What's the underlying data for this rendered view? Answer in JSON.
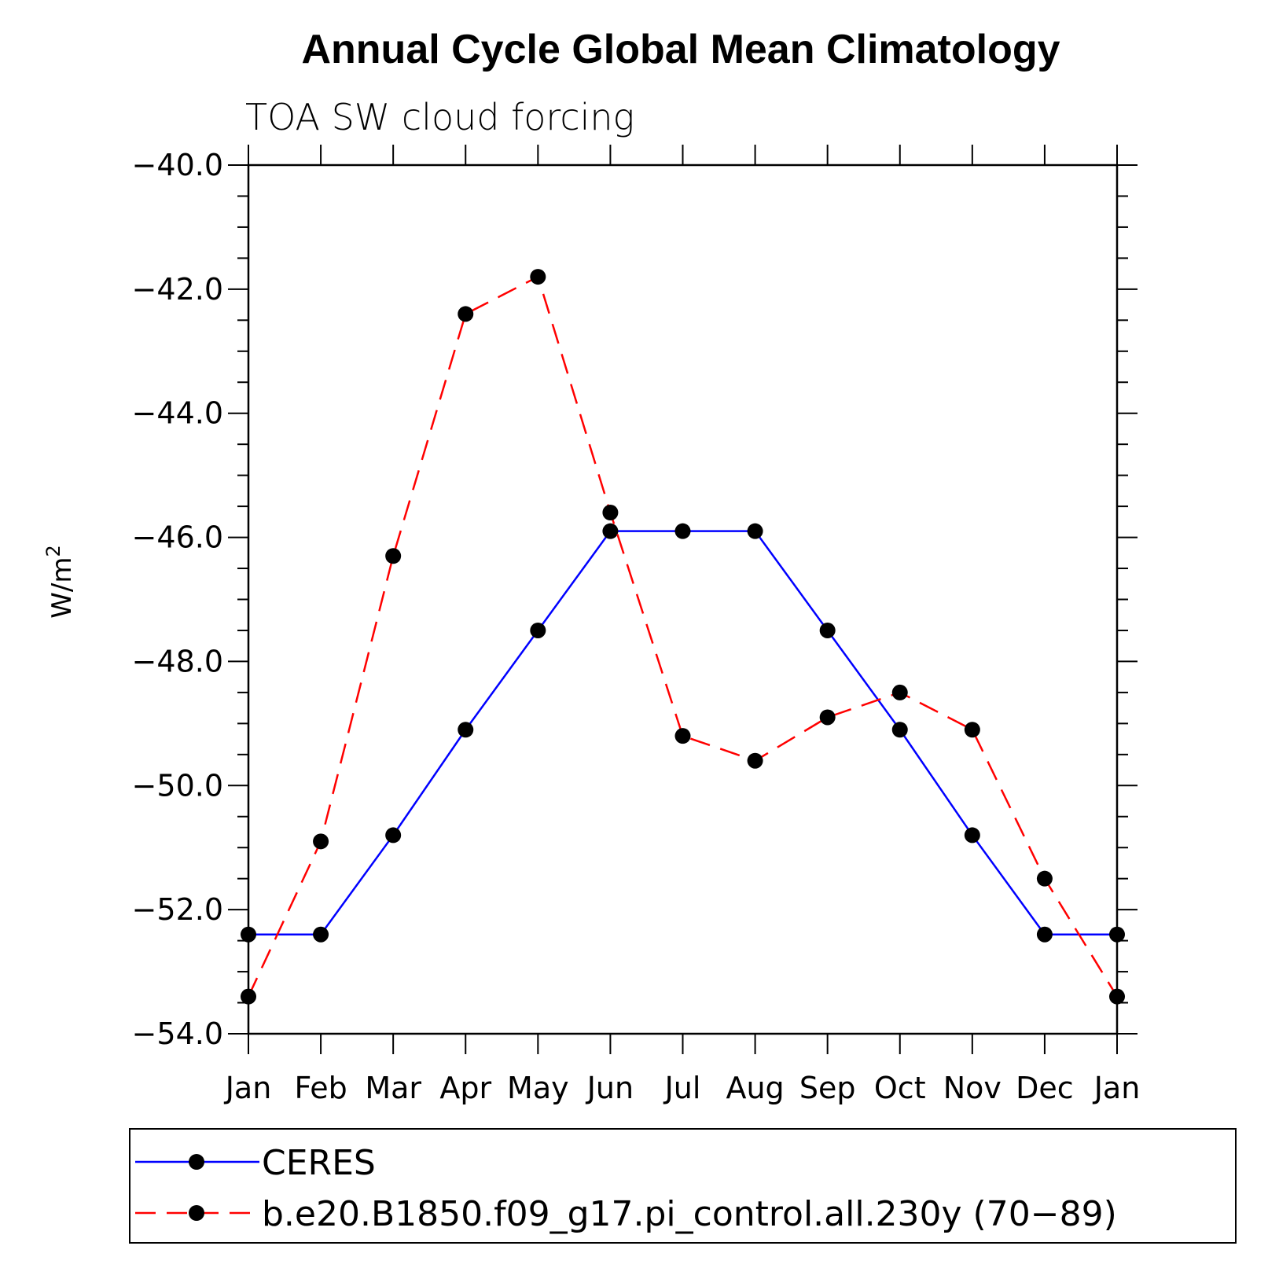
{
  "chart_data": {
    "type": "line",
    "title": "Annual Cycle Global Mean Climatology",
    "subtitle": "TOA SW cloud forcing",
    "ylabel": "W/m",
    "ylabel_sup": "2",
    "xlabel": "",
    "categories": [
      "Jan",
      "Feb",
      "Mar",
      "Apr",
      "May",
      "Jun",
      "Jul",
      "Aug",
      "Sep",
      "Oct",
      "Nov",
      "Dec",
      "Jan"
    ],
    "ylim": [
      -54.0,
      -40.0
    ],
    "yticks": [
      "−40.0",
      "−42.0",
      "−44.0",
      "−46.0",
      "−48.0",
      "−50.0",
      "−52.0",
      "−54.0"
    ],
    "ytick_values": [
      -40,
      -42,
      -44,
      -46,
      -48,
      -50,
      -52,
      -54
    ],
    "grid": false,
    "legend_position": "bottom",
    "series": [
      {
        "name": "CERES",
        "color": "#0000ff",
        "dash": "solid",
        "marker": "filled-circle",
        "values": [
          -52.4,
          -52.4,
          -50.8,
          -49.1,
          -47.5,
          -45.9,
          -45.9,
          -45.9,
          -47.5,
          -49.1,
          -50.8,
          -52.4,
          -52.4
        ]
      },
      {
        "name": "b.e20.B1850.f09_g17.pi_control.all.230y (70−89)",
        "color": "#ff0000",
        "dash": "dashed",
        "marker": "filled-circle",
        "values": [
          -53.4,
          -50.9,
          -46.3,
          -42.4,
          -41.8,
          -45.6,
          -49.2,
          -49.6,
          -48.9,
          -48.5,
          -49.1,
          -51.5,
          -53.4
        ]
      }
    ]
  }
}
